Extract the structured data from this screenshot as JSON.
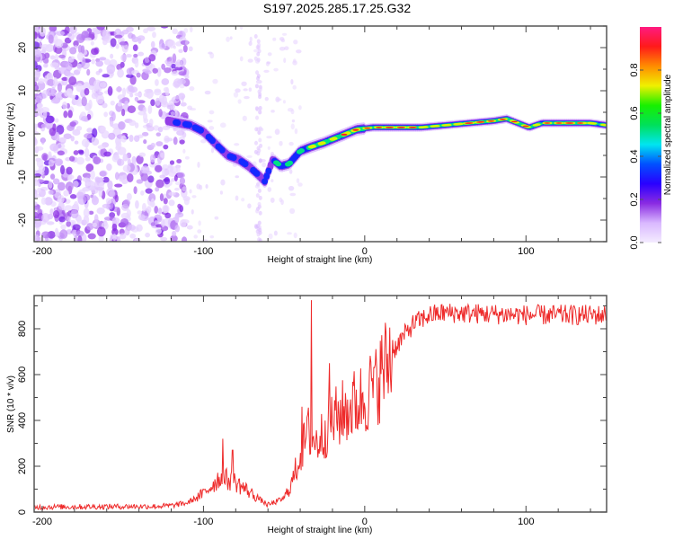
{
  "title": "S197.2025.285.17.25.G32",
  "chart_data": [
    {
      "type": "heatmap",
      "name": "spectrogram",
      "title": "S197.2025.285.17.25.G32",
      "xlabel": "Height of straight line (km)",
      "ylabel": "Frequency (Hz)",
      "xlim": [
        -205,
        150
      ],
      "ylim": [
        -25,
        25
      ],
      "xticks": [
        -200,
        -100,
        0,
        100
      ],
      "yticks": [
        -20,
        -10,
        0,
        10,
        20
      ],
      "grid": false,
      "colorbar": {
        "label": "Normalized spectral amplitude",
        "range": [
          0,
          1
        ],
        "ticks": [
          "0.0",
          "0.2",
          "0.4",
          "0.6",
          "0.8"
        ],
        "colors": [
          "#f4ecff",
          "#d9b8ff",
          "#8a2be2",
          "#2a00ff",
          "#0050ff",
          "#00e5f0",
          "#00e05a",
          "#18f000",
          "#f0f000",
          "#ff8c00",
          "#ff1a1a",
          "#ff1a80"
        ]
      },
      "noise_region_xmax": -120,
      "ridge": [
        {
          "x": -122,
          "f": 3.0,
          "a": 0.25
        },
        {
          "x": -115,
          "f": 2.5,
          "a": 0.35
        },
        {
          "x": -108,
          "f": 2.0,
          "a": 0.4
        },
        {
          "x": -100,
          "f": 0.5,
          "a": 0.38
        },
        {
          "x": -92,
          "f": -2.5,
          "a": 0.35
        },
        {
          "x": -85,
          "f": -5.0,
          "a": 0.38
        },
        {
          "x": -78,
          "f": -6.0,
          "a": 0.35
        },
        {
          "x": -72,
          "f": -7.5,
          "a": 0.3
        },
        {
          "x": -66,
          "f": -9.5,
          "a": 0.35
        },
        {
          "x": -62,
          "f": -11.0,
          "a": 0.4
        },
        {
          "x": -57,
          "f": -6.0,
          "a": 0.4
        },
        {
          "x": -52,
          "f": -7.5,
          "a": 0.55
        },
        {
          "x": -47,
          "f": -7.0,
          "a": 0.55
        },
        {
          "x": -40,
          "f": -4.0,
          "a": 0.5
        },
        {
          "x": -33,
          "f": -3.0,
          "a": 0.7
        },
        {
          "x": -25,
          "f": -2.0,
          "a": 0.75
        },
        {
          "x": -15,
          "f": -0.5,
          "a": 0.8
        },
        {
          "x": -5,
          "f": 1.0,
          "a": 0.85
        },
        {
          "x": 5,
          "f": 1.5,
          "a": 0.85
        },
        {
          "x": 20,
          "f": 1.5,
          "a": 0.95
        },
        {
          "x": 35,
          "f": 1.5,
          "a": 0.8
        },
        {
          "x": 50,
          "f": 2.0,
          "a": 0.75
        },
        {
          "x": 65,
          "f": 2.5,
          "a": 0.95
        },
        {
          "x": 80,
          "f": 3.0,
          "a": 0.8
        },
        {
          "x": 88,
          "f": 3.5,
          "a": 0.95
        },
        {
          "x": 95,
          "f": 2.5,
          "a": 0.85
        },
        {
          "x": 102,
          "f": 1.5,
          "a": 0.8
        },
        {
          "x": 110,
          "f": 2.5,
          "a": 0.75
        },
        {
          "x": 125,
          "f": 2.5,
          "a": 0.95
        },
        {
          "x": 140,
          "f": 2.5,
          "a": 0.8
        },
        {
          "x": 150,
          "f": 2.0,
          "a": 0.7
        }
      ]
    },
    {
      "type": "line",
      "name": "snr",
      "xlabel": "Height of straight line (km)",
      "ylabel": "SNR (10 * v/v)",
      "xlim": [
        -205,
        150
      ],
      "ylim": [
        0,
        945
      ],
      "xticks": [
        -200,
        -100,
        0,
        100
      ],
      "yticks": [
        0,
        200,
        400,
        600,
        800
      ],
      "grid": false,
      "color": "#ee2a2a",
      "envelope": {
        "x": [
          -205,
          -130,
          -120,
          -110,
          -100,
          -90,
          -80,
          -70,
          -60,
          -50,
          -45,
          -40,
          -35,
          -30,
          -20,
          -10,
          0,
          10,
          20,
          30,
          40,
          50,
          100,
          150
        ],
        "y": [
          22,
          25,
          28,
          40,
          80,
          150,
          130,
          80,
          30,
          60,
          130,
          250,
          350,
          300,
          400,
          450,
          500,
          600,
          730,
          820,
          860,
          870,
          860,
          860
        ]
      },
      "spikes": [
        {
          "x": -88,
          "y": 320
        },
        {
          "x": -82,
          "y": 270
        },
        {
          "x": -33,
          "y": 925
        },
        {
          "x": -39,
          "y": 460
        },
        {
          "x": -22,
          "y": 650
        },
        {
          "x": 6,
          "y": 630
        }
      ]
    }
  ]
}
